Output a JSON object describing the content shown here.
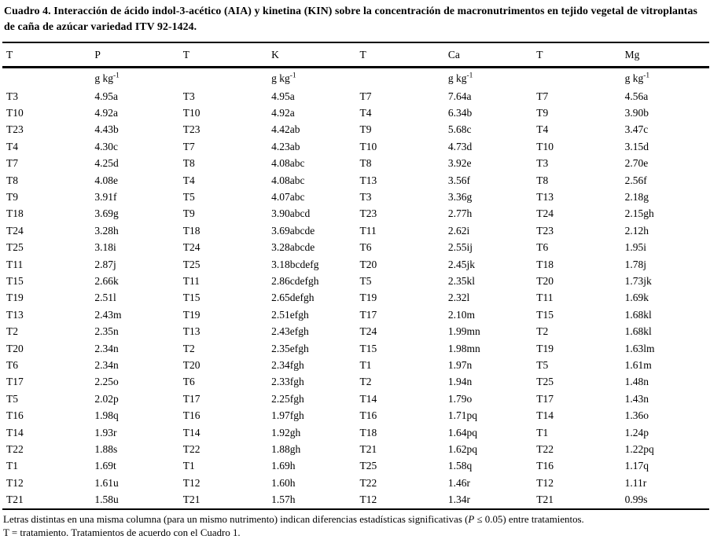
{
  "page": {
    "title": "Cuadro 4. Interacción de ácido indol-3-acético (AIA) y kinetina (KIN) sobre la concentración de macronutrimentos en tejido vegetal de vitroplantas de caña de azúcar variedad ITV 92-1424."
  },
  "colors": {
    "text": "#000000",
    "background": "#ffffff",
    "rule": "#000000"
  },
  "table": {
    "headers": [
      "T",
      "P",
      "T",
      "K",
      "T",
      "Ca",
      "T",
      "Mg"
    ],
    "unit_base": "g kg",
    "unit_exponent": "-1",
    "rows": [
      [
        "T3",
        "4.95a",
        "T3",
        "4.95a",
        "T7",
        "7.64a",
        "T7",
        "4.56a"
      ],
      [
        "T10",
        "4.92a",
        "T10",
        "4.92a",
        "T4",
        "6.34b",
        "T9",
        "3.90b"
      ],
      [
        "T23",
        "4.43b",
        "T23",
        "4.42ab",
        "T9",
        "5.68c",
        "T4",
        "3.47c"
      ],
      [
        "T4",
        "4.30c",
        "T7",
        "4.23ab",
        "T10",
        "4.73d",
        "T10",
        "3.15d"
      ],
      [
        "T7",
        "4.25d",
        "T8",
        "4.08abc",
        "T8",
        "3.92e",
        "T3",
        "2.70e"
      ],
      [
        "T8",
        "4.08e",
        "T4",
        "4.08abc",
        "T13",
        "3.56f",
        "T8",
        "2.56f"
      ],
      [
        "T9",
        "3.91f",
        "T5",
        "4.07abc",
        "T3",
        "3.36g",
        "T13",
        "2.18g"
      ],
      [
        "T18",
        "3.69g",
        "T9",
        "3.90abcd",
        "T23",
        "2.77h",
        "T24",
        "2.15gh"
      ],
      [
        "T24",
        "3.28h",
        "T18",
        "3.69abcde",
        "T11",
        "2.62i",
        "T23",
        "2.12h"
      ],
      [
        "T25",
        "3.18i",
        "T24",
        "3.28abcde",
        "T6",
        "2.55ij",
        "T6",
        "1.95i"
      ],
      [
        "T11",
        "2.87j",
        "T25",
        "3.18bcdefg",
        "T20",
        "2.45jk",
        "T18",
        "1.78j"
      ],
      [
        "T15",
        "2.66k",
        "T11",
        "2.86cdefgh",
        "T5",
        "2.35kl",
        "T20",
        "1.73jk"
      ],
      [
        "T19",
        "2.51l",
        "T15",
        "2.65defgh",
        "T19",
        "2.32l",
        "T11",
        "1.69k"
      ],
      [
        "T13",
        "2.43m",
        "T19",
        "2.51efgh",
        "T17",
        "2.10m",
        "T15",
        "1.68kl"
      ],
      [
        "T2",
        "2.35n",
        "T13",
        "2.43efgh",
        "T24",
        "1.99mn",
        "T2",
        "1.68kl"
      ],
      [
        "T20",
        "2.34n",
        "T2",
        "2.35efgh",
        "T15",
        "1.98mn",
        "T19",
        "1.63lm"
      ],
      [
        "T6",
        "2.34n",
        "T20",
        "2.34fgh",
        "T1",
        "1.97n",
        "T5",
        "1.61m"
      ],
      [
        "T17",
        "2.25o",
        "T6",
        "2.33fgh",
        "T2",
        "1.94n",
        "T25",
        "1.48n"
      ],
      [
        "T5",
        "2.02p",
        "T17",
        "2.25fgh",
        "T14",
        "1.79o",
        "T17",
        "1.43n"
      ],
      [
        "T16",
        "1.98q",
        "T16",
        "1.97fgh",
        "T16",
        "1.71pq",
        "T14",
        "1.36o"
      ],
      [
        "T14",
        "1.93r",
        "T14",
        "1.92gh",
        "T18",
        "1.64pq",
        "T1",
        "1.24p"
      ],
      [
        "T22",
        "1.88s",
        "T22",
        "1.88gh",
        "T21",
        "1.62pq",
        "T22",
        "1.22pq"
      ],
      [
        "T1",
        "1.69t",
        "T1",
        "1.69h",
        "T25",
        "1.58q",
        "T16",
        "1.17q"
      ],
      [
        "T12",
        "1.61u",
        "T12",
        "1.60h",
        "T22",
        "1.46r",
        "T12",
        "1.11r"
      ],
      [
        "T21",
        "1.58u",
        "T21",
        "1.57h",
        "T12",
        "1.34r",
        "T21",
        "0.99s"
      ]
    ]
  },
  "footnotes": {
    "line1_pre": "Letras distintas en una misma columna (para un mismo nutrimento) indican diferencias estadísticas significativas (",
    "line1_p": "P",
    "line1_post": " ≤ 0.05) entre tratamientos.",
    "line2": "T = tratamiento. Tratamientos de acuerdo con el Cuadro 1."
  }
}
